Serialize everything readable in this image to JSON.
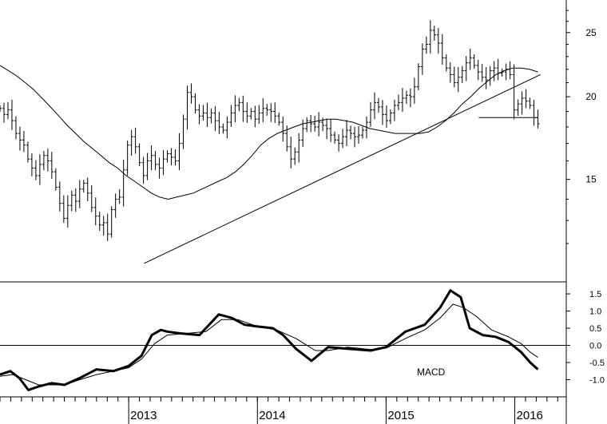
{
  "chart_data": [
    {
      "type": "ohlc",
      "title": "",
      "xlabel": "",
      "ylabel": "",
      "x_range": [
        2012.0,
        2016.4
      ],
      "ylim": [
        10.5,
        28
      ],
      "price_ticks": [
        15,
        20,
        25
      ],
      "year_ticks": [
        2013,
        2014,
        2015,
        2016
      ],
      "grid": false,
      "weekly_closes": [
        19.2,
        18.8,
        19.1,
        18.4,
        17.6,
        17.2,
        16.9,
        16.1,
        15.6,
        15.2,
        15.8,
        16.3,
        16.0,
        15.4,
        14.6,
        13.8,
        13.1,
        13.7,
        14.2,
        13.9,
        14.5,
        14.8,
        14.3,
        13.6,
        13.2,
        12.8,
        12.9,
        12.4,
        13.5,
        14.0,
        14.1,
        15.5,
        16.9,
        17.4,
        16.8,
        15.9,
        15.2,
        16.0,
        16.3,
        15.8,
        15.6,
        16.1,
        16.4,
        16.2,
        16.0,
        17.0,
        18.5,
        20.3,
        20.0,
        19.1,
        18.7,
        18.9,
        18.6,
        18.9,
        18.4,
        18.0,
        17.8,
        18.3,
        18.9,
        19.4,
        19.6,
        19.0,
        18.7,
        19.0,
        18.5,
        18.9,
        19.2,
        19.1,
        19.0,
        18.7,
        18.3,
        17.6,
        16.8,
        16.1,
        16.5,
        17.2,
        17.9,
        18.4,
        18.2,
        18.0,
        18.3,
        18.1,
        17.9,
        17.5,
        17.2,
        17.0,
        17.4,
        17.8,
        17.6,
        17.4,
        17.5,
        17.8,
        18.3,
        19.1,
        19.6,
        19.3,
        18.8,
        18.4,
        18.9,
        19.4,
        19.6,
        19.9,
        20.1,
        20.0,
        20.7,
        22.2,
        23.6,
        24.0,
        25.2,
        24.8,
        24.1,
        22.9,
        22.1,
        21.6,
        21.0,
        21.4,
        21.9,
        22.5,
        22.9,
        22.3,
        21.8,
        21.4,
        21.2,
        21.9,
        22.1,
        21.7,
        21.8,
        22.0,
        21.6,
        19.1,
        19.5,
        19.9,
        19.7,
        19.4,
        18.6,
        18.2
      ],
      "moving_average": [
        22.3,
        21.9,
        21.5,
        21.0,
        20.5,
        19.9,
        19.3,
        18.7,
        18.1,
        17.6,
        17.1,
        16.7,
        16.3,
        15.9,
        15.6,
        15.2,
        14.9,
        14.6,
        14.3,
        14.1,
        14.0,
        14.1,
        14.2,
        14.3,
        14.5,
        14.7,
        14.9,
        15.1,
        15.4,
        15.8,
        16.3,
        16.9,
        17.3,
        17.6,
        17.8,
        18.0,
        18.2,
        18.3,
        18.4,
        18.5,
        18.5,
        18.4,
        18.3,
        18.1,
        17.9,
        17.8,
        17.7,
        17.6,
        17.6,
        17.6,
        17.6,
        17.7,
        18.0,
        18.4,
        18.9,
        19.5,
        20.0,
        20.6,
        21.1,
        21.6,
        21.9,
        22.1,
        22.1,
        22.0,
        21.8
      ],
      "support_trendline": {
        "from": [
          2013.12,
          11.2
        ],
        "to": [
          2016.2,
          21.6
        ]
      },
      "horizontal_level": {
        "from": [
          2015.72,
          18.6
        ],
        "to": [
          2016.18,
          18.6
        ],
        "value": 18.6
      }
    },
    {
      "type": "line",
      "title": "",
      "annotation": "MACD",
      "ylim": [
        -1.5,
        1.85
      ],
      "yticks": [
        "1.5",
        "1.0",
        "0.5",
        "0.0",
        "-0.5",
        "-1.0"
      ],
      "zero_line": true,
      "series": [
        {
          "x": [
            2012.0,
            2012.08,
            2012.15,
            2012.22,
            2012.3,
            2012.4,
            2012.5,
            2012.62,
            2012.75,
            2012.88,
            2013.0,
            2013.1,
            2013.18,
            2013.25,
            2013.3,
            2013.4,
            2013.55,
            2013.7,
            2013.8,
            2013.9,
            2014.0,
            2014.12,
            2014.2,
            2014.3,
            2014.42,
            2014.55,
            2014.7,
            2014.88,
            2015.0,
            2015.15,
            2015.3,
            2015.42,
            2015.5,
            2015.58,
            2015.65,
            2015.75,
            2015.85,
            2015.95,
            2016.05,
            2016.12,
            2016.18
          ],
          "y": [
            -0.85,
            -0.75,
            -0.95,
            -1.3,
            -1.2,
            -1.1,
            -1.15,
            -0.95,
            -0.7,
            -0.75,
            -0.6,
            -0.3,
            0.3,
            0.45,
            0.4,
            0.35,
            0.3,
            0.9,
            0.8,
            0.6,
            0.55,
            0.5,
            0.3,
            -0.1,
            -0.45,
            -0.05,
            -0.1,
            -0.15,
            -0.05,
            0.4,
            0.6,
            1.1,
            1.6,
            1.4,
            0.5,
            0.3,
            0.25,
            0.1,
            -0.2,
            -0.5,
            -0.7
          ]
        },
        {
          "x": [
            2012.0,
            2012.1,
            2012.2,
            2012.3,
            2012.4,
            2012.5,
            2012.62,
            2012.75,
            2012.88,
            2013.0,
            2013.1,
            2013.2,
            2013.3,
            2013.45,
            2013.6,
            2013.72,
            2013.85,
            2014.0,
            2014.15,
            2014.3,
            2014.45,
            2014.55,
            2014.7,
            2014.88,
            2015.0,
            2015.15,
            2015.3,
            2015.42,
            2015.52,
            2015.6,
            2015.7,
            2015.82,
            2015.95,
            2016.05,
            2016.12,
            2016.18
          ],
          "y": [
            -0.9,
            -0.85,
            -1.0,
            -1.15,
            -1.15,
            -1.15,
            -1.0,
            -0.85,
            -0.75,
            -0.65,
            -0.4,
            0.05,
            0.3,
            0.35,
            0.4,
            0.75,
            0.75,
            0.55,
            0.45,
            0.2,
            -0.15,
            -0.15,
            -0.05,
            -0.12,
            -0.08,
            0.2,
            0.45,
            0.8,
            1.2,
            1.1,
            0.85,
            0.45,
            0.25,
            0.05,
            -0.2,
            -0.35
          ]
        }
      ]
    }
  ]
}
